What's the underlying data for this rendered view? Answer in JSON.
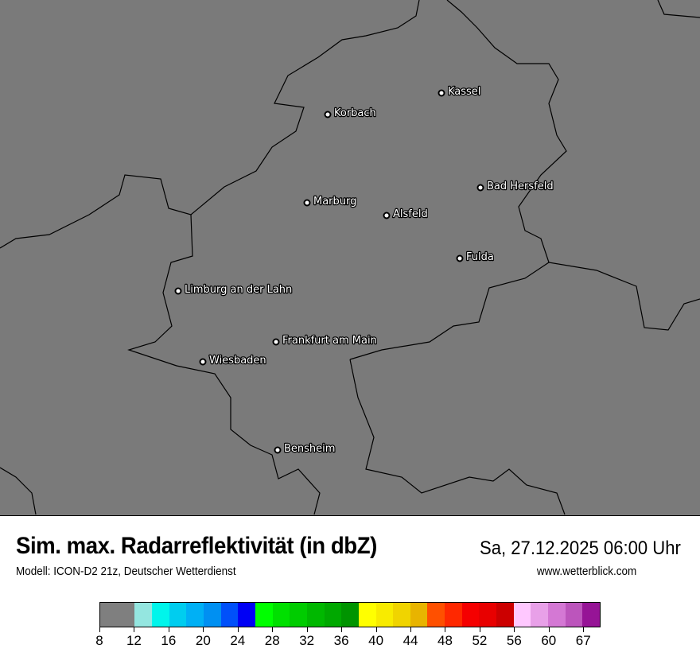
{
  "header": {
    "title": "Sim. max. Radarreflektivität (in dbZ)",
    "datetime": "Sa, 27.12.2025 06:00 Uhr",
    "model": "Modell: ICON-D2 21z, Deutscher Wetterdienst",
    "website": "www.wetterblick.com"
  },
  "map": {
    "background_color": "#7a7a7a",
    "border_color": "#000000",
    "cities": [
      {
        "name": "Kassel"
      },
      {
        "name": "Korbach"
      },
      {
        "name": "Bad Hersfeld"
      },
      {
        "name": "Marburg"
      },
      {
        "name": "Alsfeld"
      },
      {
        "name": "Fulda"
      },
      {
        "name": "Limburg an der Lahn"
      },
      {
        "name": "Frankfurt am Main"
      },
      {
        "name": "Wiesbaden"
      },
      {
        "name": "Bensheim"
      }
    ]
  },
  "colorbar": {
    "colors": [
      "#7f7f7f",
      "#94e6e0",
      "#00f5eb",
      "#00cdef",
      "#00b0f5",
      "#0090f2",
      "#0050fa",
      "#0000f5",
      "#00ff00",
      "#00e000",
      "#00cc00",
      "#00b800",
      "#00a800",
      "#009400",
      "#ffff00",
      "#f8eb00",
      "#f0d400",
      "#e8b400",
      "#ff5000",
      "#ff2800",
      "#f50000",
      "#e80000",
      "#cc0000",
      "#ffc8ff",
      "#e8a0e8",
      "#d478d4",
      "#bc55bc",
      "#961496"
    ],
    "tick_labels": [
      "8",
      "12",
      "16",
      "20",
      "24",
      "28",
      "32",
      "36",
      "40",
      "44",
      "48",
      "52",
      "56",
      "60",
      "67"
    ]
  }
}
